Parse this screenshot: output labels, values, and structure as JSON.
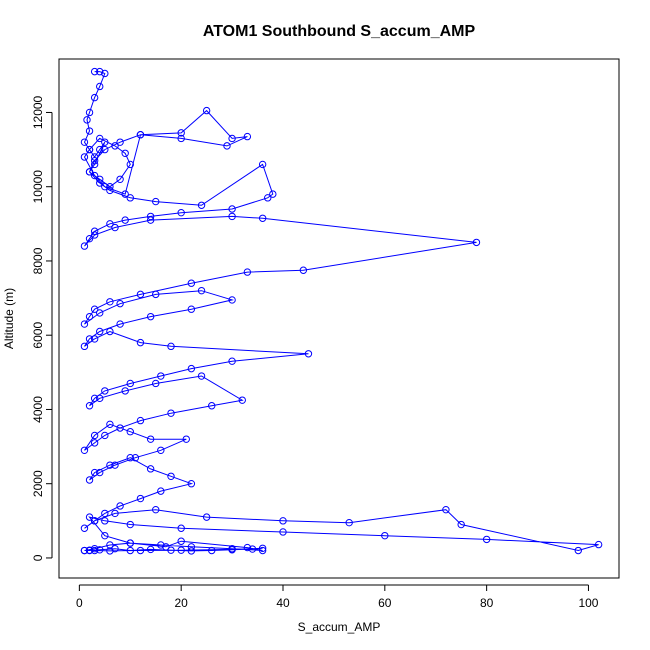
{
  "chart_data": {
    "type": "line",
    "title": "ATOM1 Southbound S_accum_AMP",
    "xlabel": "S_accum_AMP",
    "ylabel": "Altitude (m)",
    "xlim": [
      -4,
      106
    ],
    "ylim": [
      -540,
      13440
    ],
    "x_ticks": [
      0,
      20,
      40,
      60,
      80,
      100
    ],
    "y_ticks": [
      0,
      2000,
      4000,
      6000,
      8000,
      10000,
      12000
    ],
    "grid": false,
    "series_color": "#0000ff",
    "marker": "open-circle",
    "series": [
      {
        "x": [
          3,
          4,
          5,
          4,
          3,
          2,
          1.5,
          2,
          1,
          2,
          3,
          4,
          5,
          3,
          2,
          4,
          6,
          8,
          10,
          9,
          7,
          4,
          2,
          1,
          3,
          5,
          9,
          12,
          20,
          25,
          30,
          33,
          29,
          20,
          12,
          8,
          5,
          3,
          2,
          4,
          6,
          10,
          15,
          24,
          36,
          38,
          37,
          30,
          20,
          14,
          9,
          6,
          3,
          2,
          1,
          3,
          7,
          14,
          30,
          36,
          78,
          44,
          33,
          22,
          12,
          6,
          3,
          2,
          1,
          4,
          8,
          15,
          24,
          30,
          22,
          14,
          8,
          4,
          2,
          1,
          3,
          6,
          12,
          18,
          45,
          30,
          22,
          16,
          10,
          5,
          3,
          2,
          4,
          9,
          15,
          24,
          32,
          26,
          18,
          12,
          8,
          5,
          3,
          1,
          3,
          6,
          10,
          14,
          21,
          16,
          11,
          7,
          4,
          2,
          3,
          6,
          10,
          14,
          18,
          22,
          16,
          12,
          8,
          5,
          3,
          1,
          3,
          7,
          15,
          25,
          40,
          53,
          72,
          75,
          98,
          102,
          80,
          60,
          40,
          20,
          10,
          5,
          2,
          5,
          10,
          17,
          20,
          33,
          36,
          30,
          22,
          16,
          10,
          6,
          3,
          1,
          2,
          4,
          7,
          10,
          14,
          18,
          22,
          26,
          30,
          34,
          36,
          30,
          20,
          12,
          6,
          3,
          2,
          1
        ],
        "y": [
          13100,
          13100,
          13050,
          12700,
          12400,
          12000,
          11800,
          11500,
          11200,
          11000,
          10800,
          11000,
          11200,
          10600,
          10400,
          10200,
          10000,
          10200,
          10600,
          10900,
          11100,
          11300,
          11000,
          10800,
          10300,
          10000,
          9800,
          11400,
          11450,
          12050,
          11300,
          11350,
          11100,
          11300,
          11400,
          11200,
          11000,
          10700,
          10400,
          10100,
          9900,
          9700,
          9600,
          9500,
          10600,
          9800,
          9700,
          9400,
          9300,
          9200,
          9100,
          9000,
          8800,
          8600,
          8400,
          8700,
          8900,
          9100,
          9200,
          9150,
          8500,
          7750,
          7700,
          7400,
          7100,
          6900,
          6700,
          6500,
          6300,
          6600,
          6850,
          7100,
          7200,
          6950,
          6700,
          6500,
          6300,
          6100,
          5900,
          5700,
          5900,
          6100,
          5800,
          5700,
          5500,
          5300,
          5100,
          4900,
          4700,
          4500,
          4300,
          4100,
          4300,
          4500,
          4700,
          4900,
          4250,
          4100,
          3900,
          3700,
          3500,
          3300,
          3100,
          2900,
          3300,
          3600,
          3400,
          3200,
          3200,
          2900,
          2700,
          2500,
          2300,
          2100,
          2300,
          2500,
          2700,
          2400,
          2200,
          2000,
          1800,
          1600,
          1400,
          1200,
          1000,
          800,
          1000,
          1200,
          1300,
          1100,
          1000,
          950,
          1300,
          900,
          200,
          360,
          500,
          600,
          700,
          800,
          900,
          1000,
          1100,
          600,
          400,
          300,
          450,
          280,
          200,
          250,
          300,
          350,
          400,
          350,
          250,
          200,
          200,
          220,
          250,
          200,
          230,
          210,
          190,
          200,
          220,
          240,
          260,
          230,
          210,
          200,
          190,
          200,
          210,
          200
        ]
      }
    ]
  }
}
